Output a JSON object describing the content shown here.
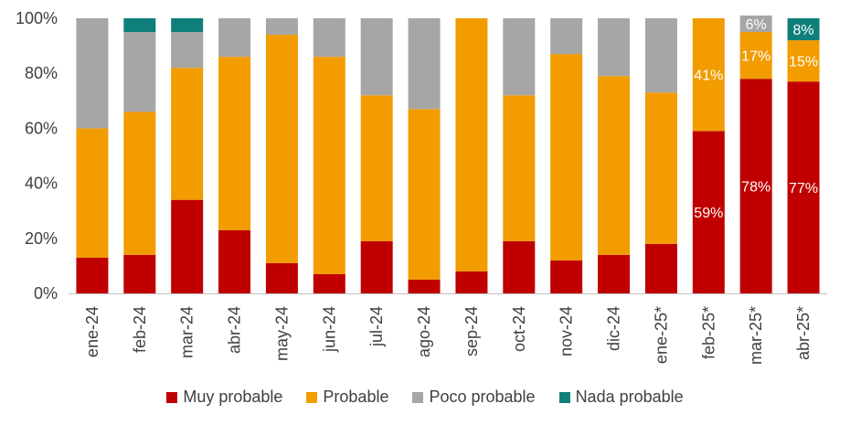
{
  "chart_data": {
    "type": "bar",
    "stacked": true,
    "categories": [
      "ene-24",
      "feb-24",
      "mar-24",
      "abr-24",
      "may-24",
      "jun-24",
      "jul-24",
      "ago-24",
      "sep-24",
      "oct-24",
      "nov-24",
      "dic-24",
      "ene-25*",
      "feb-25*",
      "mar-25*",
      "abr-25*"
    ],
    "series": [
      {
        "name": "Muy probable",
        "color": "#c00000",
        "values": [
          13,
          14,
          34,
          23,
          11,
          7,
          19,
          5,
          8,
          19,
          12,
          14,
          18,
          59,
          78,
          77
        ]
      },
      {
        "name": "Probable",
        "color": "#f29c00",
        "values": [
          47,
          52,
          48,
          63,
          83,
          79,
          53,
          62,
          92,
          53,
          75,
          65,
          55,
          41,
          17,
          15
        ]
      },
      {
        "name": "Poco probable",
        "color": "#a6a6a6",
        "values": [
          40,
          29,
          13,
          14,
          6,
          14,
          28,
          33,
          0,
          28,
          13,
          21,
          27,
          0,
          6,
          0
        ]
      },
      {
        "name": "Nada probable",
        "color": "#0f7f7a",
        "values": [
          0,
          5,
          5,
          0,
          0,
          0,
          0,
          0,
          0,
          0,
          0,
          0,
          0,
          0,
          0,
          8
        ]
      }
    ],
    "data_labels": [
      {
        "category": "feb-25*",
        "series": "Muy probable",
        "text": "59%"
      },
      {
        "category": "feb-25*",
        "series": "Probable",
        "text": "41%"
      },
      {
        "category": "mar-25*",
        "series": "Muy probable",
        "text": "78%"
      },
      {
        "category": "mar-25*",
        "series": "Probable",
        "text": "17%"
      },
      {
        "category": "mar-25*",
        "series": "Poco probable",
        "text": "6%"
      },
      {
        "category": "abr-25*",
        "series": "Muy probable",
        "text": "77%"
      },
      {
        "category": "abr-25*",
        "series": "Probable",
        "text": "15%"
      },
      {
        "category": "abr-25*",
        "series": "Nada probable",
        "text": "8%"
      }
    ],
    "yticks": [
      "0%",
      "20%",
      "40%",
      "60%",
      "80%",
      "100%"
    ],
    "ylim": [
      0,
      100
    ],
    "grid": false,
    "legend": "bottom"
  }
}
